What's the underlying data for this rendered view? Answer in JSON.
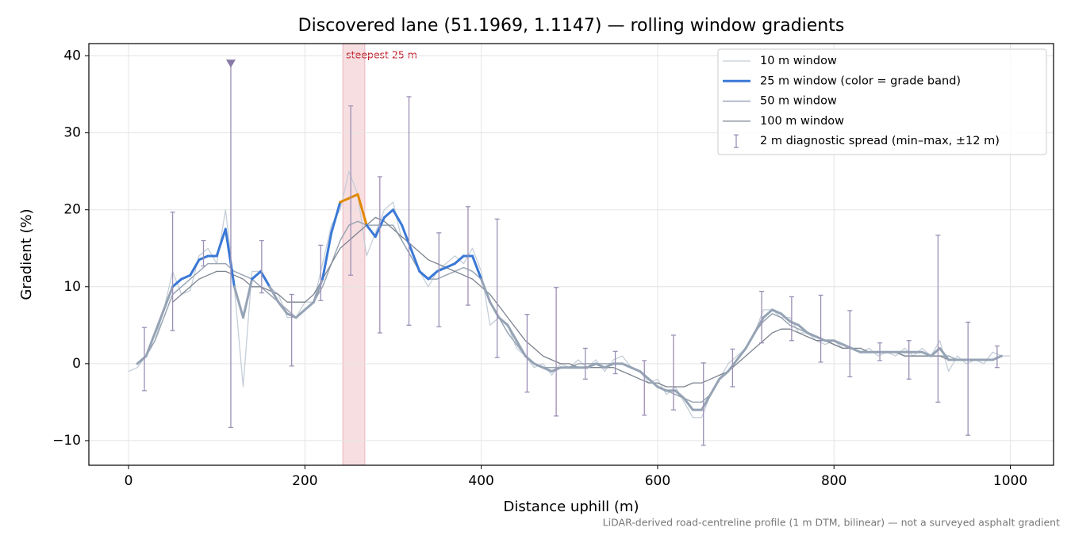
{
  "chart_data": {
    "type": "line",
    "title": "Discovered lane (51.1969, 1.1147) — rolling window gradients",
    "x_label": "Distance uphill (m)",
    "y_label": "Gradient (%)",
    "footnote": "LiDAR-derived road-centreline profile (1 m DTM, bilinear) — not a surveyed asphalt gradient",
    "xlim": [
      -45,
      1049
    ],
    "ylim": [
      -13.2,
      41.6
    ],
    "xticks": [
      0,
      200,
      400,
      600,
      800,
      1000
    ],
    "yticks": [
      {
        "value": -10,
        "label": "−10"
      },
      0,
      10,
      20,
      30,
      40
    ],
    "grid": true,
    "legend": "upper right",
    "highlight": {
      "xlim": [
        243,
        268
      ],
      "label": "steepest 25 m",
      "color": "#e8a0a8"
    },
    "x": [
      0,
      10,
      20,
      30,
      40,
      50,
      60,
      70,
      80,
      90,
      100,
      110,
      120,
      130,
      140,
      150,
      160,
      170,
      180,
      190,
      200,
      210,
      220,
      230,
      240,
      250,
      260,
      270,
      280,
      290,
      300,
      310,
      320,
      330,
      340,
      350,
      360,
      370,
      380,
      390,
      400,
      410,
      420,
      430,
      440,
      450,
      460,
      470,
      480,
      490,
      500,
      510,
      520,
      530,
      540,
      550,
      560,
      570,
      580,
      590,
      600,
      610,
      620,
      630,
      640,
      650,
      660,
      670,
      680,
      690,
      700,
      710,
      720,
      730,
      740,
      750,
      760,
      770,
      780,
      790,
      800,
      810,
      820,
      830,
      840,
      850,
      860,
      870,
      880,
      890,
      900,
      910,
      920,
      930,
      940,
      950,
      960,
      970,
      980,
      990,
      1000
    ],
    "series": [
      {
        "name": "10 m window",
        "color": "#c5ced8",
        "width": 1.3,
        "values": [
          -1,
          -0.5,
          1,
          3,
          7,
          12,
          9,
          9.5,
          14,
          15,
          13,
          20,
          10,
          -3,
          12,
          12,
          10,
          9,
          6,
          6,
          8,
          8,
          13,
          18,
          20,
          25,
          22,
          14,
          17,
          20,
          21,
          16,
          14,
          12,
          10,
          12,
          13,
          14,
          13,
          15,
          12,
          5,
          6,
          5,
          2,
          1,
          -0.5,
          0,
          -1.5,
          0,
          -0.5,
          0.5,
          -0.5,
          0.5,
          -1,
          0.5,
          1,
          -0.5,
          -1,
          -2.5,
          -2,
          -4,
          -3,
          -5,
          -7,
          -7,
          -4,
          -2,
          0,
          1,
          2,
          4,
          7,
          7,
          6,
          6,
          4,
          4,
          3,
          2.5,
          3,
          2,
          2,
          1.5,
          2,
          1,
          1.5,
          1,
          2,
          1,
          2,
          1,
          3,
          -1,
          1,
          0,
          0.5,
          0,
          1.5,
          1,
          1
        ]
      },
      {
        "name": "25 m window (color = grade band)",
        "color": "#3a78d6",
        "width": 3,
        "base_color": "#95a3b5",
        "bands": [
          {
            "from": 10,
            "color": "#3a78d6"
          },
          {
            "from": 20,
            "color": "#e08a00"
          }
        ],
        "values": [
          null,
          0,
          1,
          4,
          7,
          10,
          11,
          11.5,
          13.5,
          14,
          14,
          17.5,
          10,
          6,
          11,
          12,
          10,
          8,
          6.5,
          6,
          7,
          8,
          11,
          17,
          21,
          21.5,
          22,
          18,
          16.5,
          19,
          20,
          18,
          15,
          12,
          11,
          12,
          12.5,
          13,
          14,
          14,
          11,
          8,
          6,
          5,
          3,
          1,
          0,
          -0.5,
          -1,
          -0.5,
          -0.5,
          -0.5,
          -0.5,
          0,
          -0.5,
          0,
          0,
          -0.5,
          -1,
          -2,
          -3,
          -3.5,
          -3.5,
          -4.5,
          -6,
          -6,
          -4,
          -2,
          -1,
          0.5,
          2,
          4,
          6,
          7,
          6.5,
          5.5,
          5,
          4,
          3.5,
          3,
          3,
          2.5,
          2,
          1.5,
          1.5,
          1.5,
          1.5,
          1.5,
          1.5,
          1.5,
          1.5,
          1,
          2,
          0.5,
          0.5,
          0.5,
          0.5,
          0.5,
          0.5,
          1,
          null
        ]
      },
      {
        "name": "50 m window",
        "color": "#9aa6b4",
        "width": 1.5,
        "values": [
          null,
          0,
          1,
          3,
          6,
          9,
          10,
          11,
          12,
          13,
          13,
          13,
          12,
          11.5,
          11,
          10,
          9,
          8,
          7,
          6,
          7,
          8,
          10,
          13,
          16,
          18,
          18.5,
          18,
          18,
          18,
          18,
          16,
          14,
          12,
          11,
          11,
          11.5,
          12,
          12.5,
          12,
          11,
          8,
          6,
          4,
          2.5,
          1,
          0,
          -0.5,
          -0.5,
          -0.5,
          -0.5,
          0,
          0,
          0,
          0,
          0,
          0,
          -0.5,
          -1,
          -2,
          -3,
          -3.5,
          -4,
          -4.5,
          -5,
          -5,
          -4,
          -2,
          -1,
          0.5,
          2,
          4,
          5.5,
          6.5,
          6,
          5,
          4.5,
          4,
          3.5,
          3,
          2.5,
          2,
          2,
          1.5,
          1.5,
          1.5,
          1.5,
          1.5,
          1,
          1,
          1,
          1,
          1,
          1,
          0.5,
          0.5,
          0.5,
          0.5,
          0.5,
          1,
          null
        ]
      },
      {
        "name": "100 m window",
        "color": "#7d8490",
        "width": 1.3,
        "values": [
          null,
          null,
          null,
          null,
          null,
          8,
          9,
          10,
          11,
          11.5,
          12,
          12,
          11.5,
          11,
          10,
          10,
          9.5,
          9,
          8,
          8,
          8,
          9,
          11,
          13,
          15,
          16,
          17,
          18,
          19,
          18.5,
          17.5,
          16.5,
          15.5,
          14.5,
          13.5,
          13,
          12.5,
          12,
          11.5,
          11,
          10,
          9,
          7.5,
          6,
          4.5,
          3,
          2,
          1,
          0.5,
          0,
          0,
          -0.5,
          -0.5,
          -0.5,
          -0.5,
          -0.5,
          -1,
          -1.5,
          -2,
          -2.5,
          -2.5,
          -3,
          -3,
          -3,
          -2.5,
          -2.5,
          -2,
          -1.5,
          -1,
          0,
          1,
          2,
          3,
          4,
          4.5,
          4.5,
          4,
          3.5,
          3,
          3,
          2.5,
          2,
          2,
          2,
          1.5,
          1.5,
          1.5,
          1.5,
          1,
          1,
          1,
          1,
          1,
          0.5,
          0.5,
          0.5,
          null,
          null,
          null,
          null,
          null
        ]
      }
    ],
    "errorbars": {
      "name": "2 m diagnostic spread (min–max, ±12 m)",
      "color": "#9b8fb5",
      "x": [
        18,
        50,
        85,
        116,
        151,
        185,
        218,
        252,
        285,
        318,
        352,
        385,
        418,
        452,
        485,
        518,
        552,
        585,
        618,
        652,
        685,
        718,
        752,
        785,
        818,
        852,
        885,
        918,
        952,
        985
      ],
      "low": [
        -3.5,
        4.3,
        12.7,
        -8.3,
        9.2,
        -0.3,
        8.2,
        11.5,
        4,
        5,
        4.8,
        7.6,
        0.8,
        -3.7,
        -6.8,
        -2,
        -1.3,
        -6.7,
        -6,
        -10.6,
        -3,
        2.7,
        3,
        0.2,
        -1.7,
        0.4,
        -2,
        -5,
        -9.3,
        -0.5
      ],
      "high": [
        4.7,
        19.7,
        16,
        39,
        16,
        9,
        15.4,
        33.5,
        24.3,
        34.7,
        17,
        20.4,
        18.8,
        6.4,
        9.9,
        2,
        1.6,
        0.4,
        3.7,
        0.1,
        1.9,
        9.4,
        8.7,
        8.9,
        6.9,
        2.7,
        3,
        16.7,
        5.4,
        2.3
      ]
    }
  }
}
